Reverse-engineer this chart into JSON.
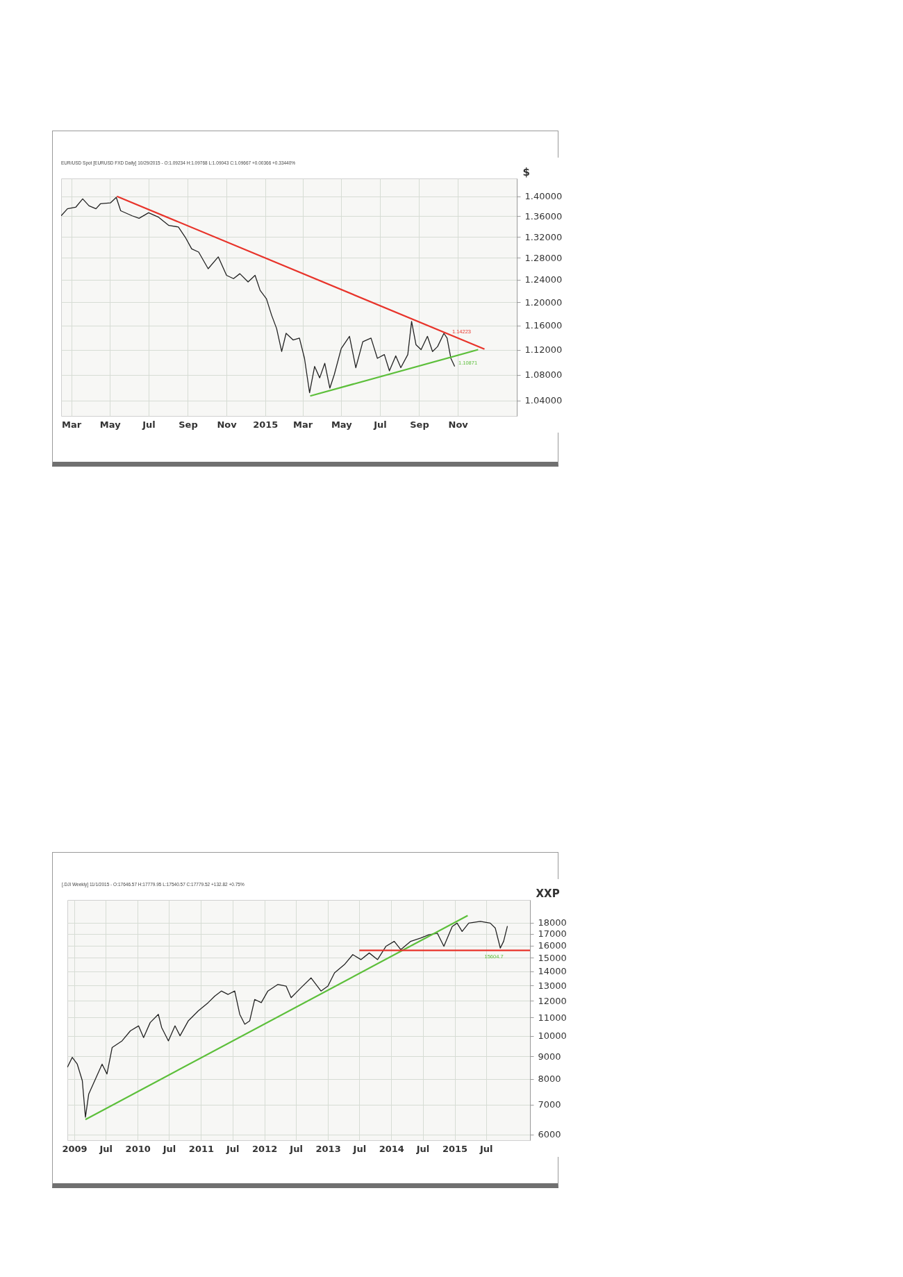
{
  "chart_data": [
    {
      "type": "line",
      "title": "EUR/USD Spot [EURUSD FXD Daily] 10/29/2015 - O:1.09234 H:1.09768 L:1.09043 C:1.09667 +0.00366 +0.33440%",
      "ylabel": "$",
      "log": true,
      "grid": true,
      "xlim": [
        "2014-02-13",
        "2016-02-02"
      ],
      "xticks": [
        {
          "value": "2014-03-01",
          "label": "Mar"
        },
        {
          "value": "2014-05-01",
          "label": "May"
        },
        {
          "value": "2014-07-01",
          "label": "Jul"
        },
        {
          "value": "2014-09-01",
          "label": "Sep"
        },
        {
          "value": "2014-11-01",
          "label": "Nov"
        },
        {
          "value": "2015-01-01",
          "label": "2015"
        },
        {
          "value": "2015-03-01",
          "label": "Mar"
        },
        {
          "value": "2015-05-01",
          "label": "May"
        },
        {
          "value": "2015-07-01",
          "label": "Jul"
        },
        {
          "value": "2015-09-01",
          "label": "Sep"
        },
        {
          "value": "2015-11-01",
          "label": "Nov"
        }
      ],
      "ylim": [
        1.017,
        1.437
      ],
      "yticks": [
        {
          "value": 1.04,
          "label": "1.04000"
        },
        {
          "value": 1.08,
          "label": "1.08000"
        },
        {
          "value": 1.12,
          "label": "1.12000"
        },
        {
          "value": 1.16,
          "label": "1.16000"
        },
        {
          "value": 1.2,
          "label": "1.20000"
        },
        {
          "value": 1.24,
          "label": "1.24000"
        },
        {
          "value": 1.28,
          "label": "1.28000"
        },
        {
          "value": 1.32,
          "label": "1.32000"
        },
        {
          "value": 1.36,
          "label": "1.36000"
        },
        {
          "value": 1.4,
          "label": "1.40000"
        }
      ],
      "series": [
        {
          "color": "#222222",
          "x": [
            "2014-02-13",
            "2014-02-23",
            "2014-03-08",
            "2014-03-19",
            "2014-03-29",
            "2014-04-09",
            "2014-04-16",
            "2014-05-02",
            "2014-05-11",
            "2014-05-18",
            "2014-06-05",
            "2014-06-16",
            "2014-07-01",
            "2014-07-17",
            "2014-08-02",
            "2014-08-17",
            "2014-08-28",
            "2014-09-07",
            "2014-09-18",
            "2014-10-03",
            "2014-10-19",
            "2014-11-01",
            "2014-11-12",
            "2014-11-22",
            "2014-12-05",
            "2014-12-16",
            "2014-12-24",
            "2015-01-03",
            "2015-01-11",
            "2015-01-19",
            "2015-01-27",
            "2015-02-03",
            "2015-02-14",
            "2015-02-24",
            "2015-03-04",
            "2015-03-12",
            "2015-03-20",
            "2015-03-28",
            "2015-04-05",
            "2015-04-13",
            "2015-04-20",
            "2015-05-01",
            "2015-05-14",
            "2015-05-24",
            "2015-06-04",
            "2015-06-17",
            "2015-06-27",
            "2015-07-08",
            "2015-07-16",
            "2015-07-26",
            "2015-08-03",
            "2015-08-14",
            "2015-08-20",
            "2015-08-27",
            "2015-09-04",
            "2015-09-14",
            "2015-09-22",
            "2015-09-30",
            "2015-10-10",
            "2015-10-15",
            "2015-10-21",
            "2015-10-27"
          ],
          "values": [
            1.361,
            1.375,
            1.378,
            1.395,
            1.381,
            1.375,
            1.385,
            1.387,
            1.398,
            1.371,
            1.361,
            1.356,
            1.367,
            1.358,
            1.342,
            1.339,
            1.319,
            1.297,
            1.291,
            1.26,
            1.282,
            1.248,
            1.242,
            1.251,
            1.236,
            1.248,
            1.221,
            1.206,
            1.178,
            1.155,
            1.117,
            1.147,
            1.136,
            1.139,
            1.106,
            1.052,
            1.093,
            1.075,
            1.098,
            1.059,
            1.08,
            1.122,
            1.142,
            1.091,
            1.133,
            1.139,
            1.106,
            1.112,
            1.086,
            1.11,
            1.091,
            1.112,
            1.167,
            1.128,
            1.12,
            1.142,
            1.117,
            1.125,
            1.147,
            1.139,
            1.106,
            1.093
          ]
        },
        {
          "color": "#e8332a",
          "x": [
            "2014-05-12",
            "2015-12-13"
          ],
          "values": [
            1.4,
            1.121
          ]
        },
        {
          "color": "#5cbf3a",
          "x": [
            "2015-03-13",
            "2015-12-03"
          ],
          "values": [
            1.047,
            1.12
          ]
        }
      ],
      "annotations": [
        {
          "text": "1.14223",
          "x": "2015-10-12",
          "y": 1.14223
        },
        {
          "text": "1.10871",
          "x": "2015-10-22",
          "y": 1.10871
        }
      ]
    },
    {
      "type": "line",
      "title": "[.DJI Weekly] 11/1/2015 - O:17646.57 H:17779.95 L:17540.57 C:17779.52 +132.82 +0.75%",
      "ylabel": "XXP",
      "log": true,
      "grid": true,
      "xlim": [
        "2008-11-22",
        "2016-03-10"
      ],
      "xticks": [
        {
          "value": "2009-01-01",
          "label": "2009"
        },
        {
          "value": "2009-07-01",
          "label": "Jul"
        },
        {
          "value": "2010-01-01",
          "label": "2010"
        },
        {
          "value": "2010-07-01",
          "label": "Jul"
        },
        {
          "value": "2011-01-01",
          "label": "2011"
        },
        {
          "value": "2011-07-01",
          "label": "Jul"
        },
        {
          "value": "2012-01-01",
          "label": "2012"
        },
        {
          "value": "2012-07-01",
          "label": "Jul"
        },
        {
          "value": "2013-01-01",
          "label": "2013"
        },
        {
          "value": "2013-07-01",
          "label": "Jul"
        },
        {
          "value": "2014-01-01",
          "label": "2014"
        },
        {
          "value": "2014-07-01",
          "label": "Jul"
        },
        {
          "value": "2015-01-01",
          "label": "2015"
        },
        {
          "value": "2015-07-01",
          "label": "Jul"
        }
      ],
      "ylim": [
        5820,
        20270
      ],
      "yticks": [
        6000,
        7000,
        8000,
        9000,
        10000,
        11000,
        12000,
        13000,
        14000,
        15000,
        16000,
        17000,
        18000
      ],
      "series": [
        {
          "color": "#222222",
          "x": [
            "2008-11-22",
            "2008-12-20",
            "2009-01-18",
            "2009-02-16",
            "2009-03-06",
            "2009-03-25",
            "2009-05-03",
            "2009-06-10",
            "2009-07-08",
            "2009-08-07",
            "2009-10-03",
            "2009-11-20",
            "2010-01-06",
            "2010-02-04",
            "2010-03-14",
            "2010-04-30",
            "2010-05-19",
            "2010-06-27",
            "2010-08-04",
            "2010-09-02",
            "2010-10-19",
            "2010-12-16",
            "2011-02-11",
            "2011-03-21",
            "2011-04-28",
            "2011-06-06",
            "2011-07-14",
            "2011-08-12",
            "2011-09-10",
            "2011-10-08",
            "2011-11-06",
            "2011-12-14",
            "2012-01-21",
            "2012-03-18",
            "2012-05-05",
            "2012-06-03",
            "2012-07-30",
            "2012-09-26",
            "2012-11-22",
            "2013-01-01",
            "2013-02-08",
            "2013-04-06",
            "2013-05-24",
            "2013-07-10",
            "2013-08-27",
            "2013-10-14",
            "2013-12-01",
            "2014-01-18",
            "2014-02-25",
            "2014-04-23",
            "2014-06-19",
            "2014-08-06",
            "2014-09-23",
            "2014-10-31",
            "2014-12-18",
            "2015-01-15",
            "2015-02-13",
            "2015-03-23",
            "2015-05-29",
            "2015-07-25",
            "2015-08-23",
            "2015-09-21",
            "2015-10-10",
            "2015-11-01"
          ],
          "values": [
            8500,
            8950,
            8640,
            7930,
            6560,
            7400,
            8000,
            8640,
            8210,
            9420,
            9750,
            10270,
            10540,
            9920,
            10720,
            11190,
            10450,
            9750,
            10540,
            10010,
            10810,
            11390,
            11890,
            12300,
            12630,
            12410,
            12630,
            11190,
            10630,
            10810,
            12090,
            11890,
            12630,
            13070,
            12960,
            12200,
            12850,
            13520,
            12630,
            12960,
            13880,
            14490,
            15260,
            14870,
            15390,
            14870,
            15930,
            16350,
            15660,
            16350,
            16630,
            16920,
            17060,
            15930,
            17660,
            17970,
            17210,
            17970,
            18130,
            17970,
            17510,
            15790,
            16350,
            17700
          ]
        },
        {
          "color": "#5cbf3a",
          "x": [
            "2009-03-06",
            "2015-03-17"
          ],
          "values": [
            6480,
            18690
          ]
        },
        {
          "color": "#e8332a",
          "x": [
            "2013-07-01",
            "2016-03-10"
          ],
          "values": [
            15604.7,
            15604.7
          ]
        }
      ],
      "annotations": [
        {
          "text": "15604.7",
          "x": "2015-10-20",
          "y": 15604.7
        }
      ]
    }
  ]
}
